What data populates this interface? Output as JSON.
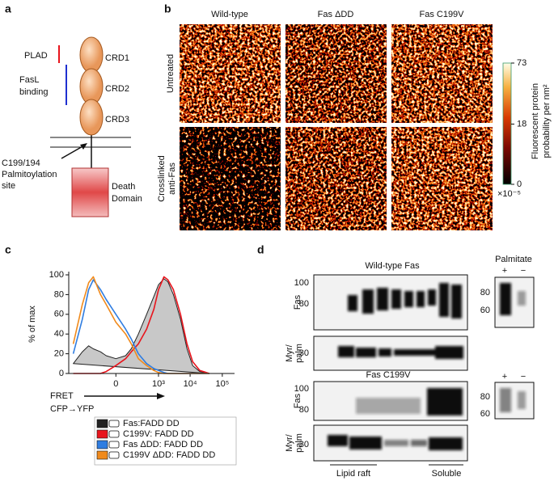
{
  "letters": [
    "a",
    "b",
    "c",
    "d"
  ],
  "panel_a": {
    "plad": "PLAD",
    "fasl": [
      "FasL",
      "binding"
    ],
    "crds": [
      "CRD1",
      "CRD2",
      "CRD3"
    ],
    "site": [
      "C199/194",
      "Palmitoylation",
      "site"
    ],
    "death": [
      "Death",
      "Domain"
    ]
  },
  "panel_b": {
    "columns": [
      "Wild-type",
      "Fas ΔDD",
      "Fas C199V"
    ],
    "rows": [
      [
        "Untreated"
      ],
      [
        "Crosslinked",
        "anti-Fas"
      ]
    ],
    "colorbar": {
      "title": [
        "Fluorescent protein",
        "probability per nm²"
      ],
      "lim": [
        0,
        73
      ],
      "ticks": [
        0,
        18,
        73
      ],
      "scale": "sqrt",
      "exponent": "×10⁻⁵"
    }
  },
  "chart_data": {
    "type": "line",
    "ylabel": "% of max",
    "xlabel": [
      "FRET",
      "CFP→YFP"
    ],
    "xscale": "symlog",
    "x": [
      -1000,
      -500,
      -300,
      -200,
      -100,
      -50,
      0,
      50,
      100,
      200,
      400,
      700,
      1000,
      1500,
      2000,
      3000,
      5000,
      8000,
      12000,
      20000,
      40000
    ],
    "series": [
      {
        "name": "Fas:FADD DD",
        "color": "#222222",
        "fill": "#c8c8c8",
        "values": [
          10,
          22,
          28,
          25,
          22,
          18,
          15,
          18,
          25,
          40,
          60,
          78,
          90,
          96,
          93,
          80,
          55,
          25,
          8,
          2,
          0
        ]
      },
      {
        "name": "C199V: FADD DD",
        "color": "#e8141c",
        "values": [
          0,
          0,
          0,
          0,
          0,
          2,
          8,
          15,
          22,
          30,
          45,
          65,
          85,
          98,
          95,
          85,
          60,
          30,
          12,
          3,
          0
        ]
      },
      {
        "name": "Fas ΔDD: FADD DD",
        "color": "#2f7de1",
        "values": [
          20,
          55,
          85,
          95,
          85,
          75,
          60,
          45,
          35,
          20,
          10,
          5,
          3,
          1,
          0,
          0,
          0,
          0,
          0,
          0,
          0
        ]
      },
      {
        "name": "C199V ΔDD: FADD DD",
        "color": "#f08a1c",
        "values": [
          30,
          70,
          92,
          98,
          80,
          70,
          52,
          40,
          30,
          15,
          8,
          3,
          1,
          0,
          0,
          0,
          0,
          0,
          0,
          0,
          0
        ]
      }
    ],
    "xlim": [
      -1400,
      240000
    ],
    "ylim": [
      0,
      100
    ],
    "xticks": [
      {
        "value": 0,
        "label": "0"
      },
      {
        "value": 1000,
        "label": "10³"
      },
      {
        "value": 10000,
        "label": "10⁴"
      },
      {
        "value": 100000,
        "label": "10⁵"
      }
    ],
    "yticks": [
      0,
      20,
      40,
      60,
      80,
      100
    ]
  },
  "panel_d": {
    "top": {
      "title": "Wild-type Fas",
      "fas": "Fas",
      "fas_markers": [
        100,
        80
      ],
      "myr": [
        "Myr/",
        "palm"
      ],
      "myr_markers": [
        30
      ]
    },
    "bottom": {
      "title": "Fas C199V",
      "fas": "Fas",
      "fas_markers": [
        100,
        80
      ],
      "myr": [
        "Myr/",
        "palm"
      ],
      "myr_markers": [
        30
      ]
    },
    "palmitate": {
      "title": "Palmitate",
      "lanes": [
        "+",
        "−"
      ],
      "top_markers": [
        80,
        60
      ],
      "bottom_markers": [
        80,
        60
      ]
    },
    "fractions": [
      "Lipid raft",
      "Soluble"
    ]
  }
}
